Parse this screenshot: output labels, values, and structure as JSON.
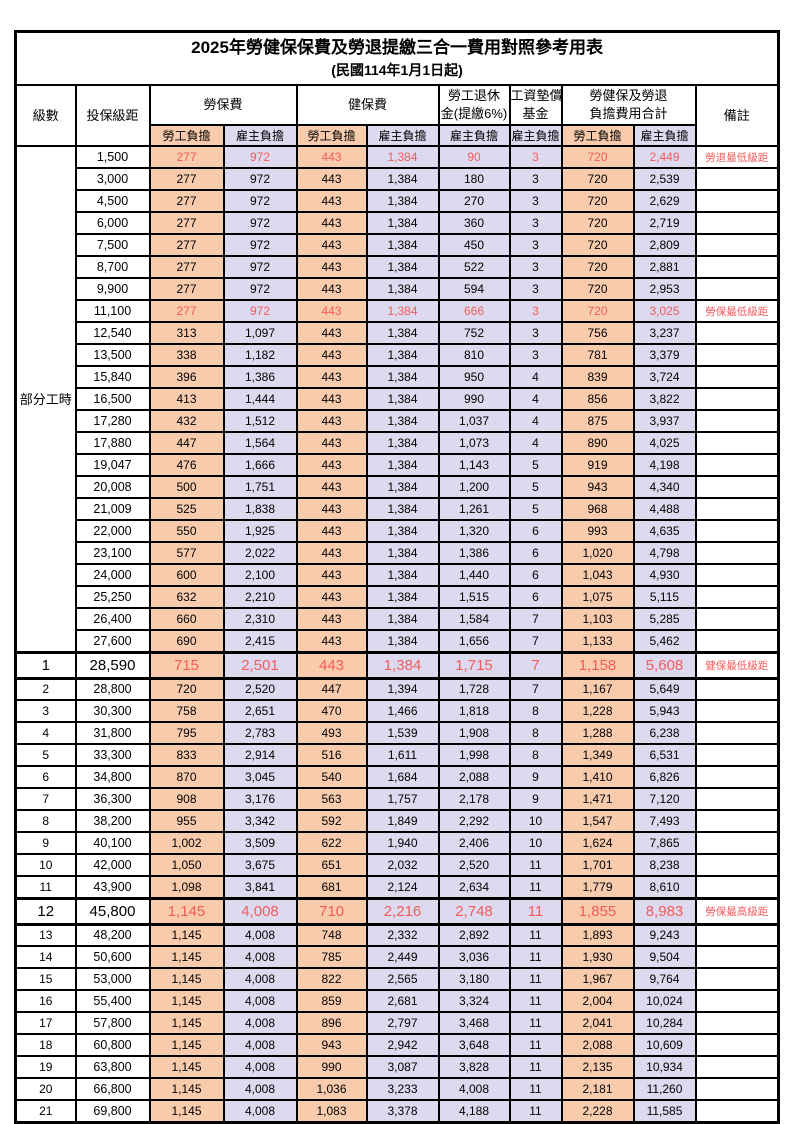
{
  "title": "2025年勞健保保費及勞退提繳三合一費用對照參考用表",
  "subtitle": "(民國114年1月1日起)",
  "header": {
    "level": "級數",
    "salary": "投保級距",
    "labor_group": "勞保費",
    "health_group": "健保費",
    "pension_line1": "勞工退休",
    "pension_line2": "金(提繳6%)",
    "wage_fund_line1": "工資墊償",
    "wage_fund_line2": "基金",
    "total_line1": "勞健保及勞退",
    "total_line2": "負擔費用合計",
    "remark": "備註",
    "employee_label": "勞工負擔",
    "employer_label": "雇主負擔"
  },
  "part_time_label": "部分工時",
  "part_time_rowspan": 23,
  "colors": {
    "employee_bg": "#F8CBAD",
    "employer_bg": "#DDD9EE",
    "highlight_text": "#F25C5C",
    "border": "#000000"
  },
  "rows": [
    {
      "level": "",
      "salary": "1,500",
      "cells": [
        "277",
        "972",
        "443",
        "1,384",
        "90",
        "3",
        "720",
        "2,449"
      ],
      "remark": "勞退最低級距",
      "highlight": true,
      "emphasized": false
    },
    {
      "level": "",
      "salary": "3,000",
      "cells": [
        "277",
        "972",
        "443",
        "1,384",
        "180",
        "3",
        "720",
        "2,539"
      ],
      "remark": "",
      "highlight": false,
      "emphasized": false
    },
    {
      "level": "",
      "salary": "4,500",
      "cells": [
        "277",
        "972",
        "443",
        "1,384",
        "270",
        "3",
        "720",
        "2,629"
      ],
      "remark": "",
      "highlight": false,
      "emphasized": false
    },
    {
      "level": "",
      "salary": "6,000",
      "cells": [
        "277",
        "972",
        "443",
        "1,384",
        "360",
        "3",
        "720",
        "2,719"
      ],
      "remark": "",
      "highlight": false,
      "emphasized": false
    },
    {
      "level": "",
      "salary": "7,500",
      "cells": [
        "277",
        "972",
        "443",
        "1,384",
        "450",
        "3",
        "720",
        "2,809"
      ],
      "remark": "",
      "highlight": false,
      "emphasized": false
    },
    {
      "level": "",
      "salary": "8,700",
      "cells": [
        "277",
        "972",
        "443",
        "1,384",
        "522",
        "3",
        "720",
        "2,881"
      ],
      "remark": "",
      "highlight": false,
      "emphasized": false
    },
    {
      "level": "",
      "salary": "9,900",
      "cells": [
        "277",
        "972",
        "443",
        "1,384",
        "594",
        "3",
        "720",
        "2,953"
      ],
      "remark": "",
      "highlight": false,
      "emphasized": false
    },
    {
      "level": "",
      "salary": "11,100",
      "cells": [
        "277",
        "972",
        "443",
        "1,384",
        "666",
        "3",
        "720",
        "3,025"
      ],
      "remark": "勞保最低級距",
      "highlight": true,
      "emphasized": false
    },
    {
      "level": "",
      "salary": "12,540",
      "cells": [
        "313",
        "1,097",
        "443",
        "1,384",
        "752",
        "3",
        "756",
        "3,237"
      ],
      "remark": "",
      "highlight": false,
      "emphasized": false
    },
    {
      "level": "",
      "salary": "13,500",
      "cells": [
        "338",
        "1,182",
        "443",
        "1,384",
        "810",
        "3",
        "781",
        "3,379"
      ],
      "remark": "",
      "highlight": false,
      "emphasized": false
    },
    {
      "level": "",
      "salary": "15,840",
      "cells": [
        "396",
        "1,386",
        "443",
        "1,384",
        "950",
        "4",
        "839",
        "3,724"
      ],
      "remark": "",
      "highlight": false,
      "emphasized": false
    },
    {
      "level": "",
      "salary": "16,500",
      "cells": [
        "413",
        "1,444",
        "443",
        "1,384",
        "990",
        "4",
        "856",
        "3,822"
      ],
      "remark": "",
      "highlight": false,
      "emphasized": false
    },
    {
      "level": "",
      "salary": "17,280",
      "cells": [
        "432",
        "1,512",
        "443",
        "1,384",
        "1,037",
        "4",
        "875",
        "3,937"
      ],
      "remark": "",
      "highlight": false,
      "emphasized": false
    },
    {
      "level": "",
      "salary": "17,880",
      "cells": [
        "447",
        "1,564",
        "443",
        "1,384",
        "1,073",
        "4",
        "890",
        "4,025"
      ],
      "remark": "",
      "highlight": false,
      "emphasized": false
    },
    {
      "level": "",
      "salary": "19,047",
      "cells": [
        "476",
        "1,666",
        "443",
        "1,384",
        "1,143",
        "5",
        "919",
        "4,198"
      ],
      "remark": "",
      "highlight": false,
      "emphasized": false
    },
    {
      "level": "",
      "salary": "20,008",
      "cells": [
        "500",
        "1,751",
        "443",
        "1,384",
        "1,200",
        "5",
        "943",
        "4,340"
      ],
      "remark": "",
      "highlight": false,
      "emphasized": false
    },
    {
      "level": "",
      "salary": "21,009",
      "cells": [
        "525",
        "1,838",
        "443",
        "1,384",
        "1,261",
        "5",
        "968",
        "4,488"
      ],
      "remark": "",
      "highlight": false,
      "emphasized": false
    },
    {
      "level": "",
      "salary": "22,000",
      "cells": [
        "550",
        "1,925",
        "443",
        "1,384",
        "1,320",
        "6",
        "993",
        "4,635"
      ],
      "remark": "",
      "highlight": false,
      "emphasized": false
    },
    {
      "level": "",
      "salary": "23,100",
      "cells": [
        "577",
        "2,022",
        "443",
        "1,384",
        "1,386",
        "6",
        "1,020",
        "4,798"
      ],
      "remark": "",
      "highlight": false,
      "emphasized": false
    },
    {
      "level": "",
      "salary": "24,000",
      "cells": [
        "600",
        "2,100",
        "443",
        "1,384",
        "1,440",
        "6",
        "1,043",
        "4,930"
      ],
      "remark": "",
      "highlight": false,
      "emphasized": false
    },
    {
      "level": "",
      "salary": "25,250",
      "cells": [
        "632",
        "2,210",
        "443",
        "1,384",
        "1,515",
        "6",
        "1,075",
        "5,115"
      ],
      "remark": "",
      "highlight": false,
      "emphasized": false
    },
    {
      "level": "",
      "salary": "26,400",
      "cells": [
        "660",
        "2,310",
        "443",
        "1,384",
        "1,584",
        "7",
        "1,103",
        "5,285"
      ],
      "remark": "",
      "highlight": false,
      "emphasized": false
    },
    {
      "level": "",
      "salary": "27,600",
      "cells": [
        "690",
        "2,415",
        "443",
        "1,384",
        "1,656",
        "7",
        "1,133",
        "5,462"
      ],
      "remark": "",
      "highlight": false,
      "emphasized": false
    },
    {
      "level": "1",
      "salary": "28,590",
      "cells": [
        "715",
        "2,501",
        "443",
        "1,384",
        "1,715",
        "7",
        "1,158",
        "5,608"
      ],
      "remark": "健保最低級距",
      "highlight": true,
      "emphasized": true
    },
    {
      "level": "2",
      "salary": "28,800",
      "cells": [
        "720",
        "2,520",
        "447",
        "1,394",
        "1,728",
        "7",
        "1,167",
        "5,649"
      ],
      "remark": "",
      "highlight": false,
      "emphasized": false
    },
    {
      "level": "3",
      "salary": "30,300",
      "cells": [
        "758",
        "2,651",
        "470",
        "1,466",
        "1,818",
        "8",
        "1,228",
        "5,943"
      ],
      "remark": "",
      "highlight": false,
      "emphasized": false
    },
    {
      "level": "4",
      "salary": "31,800",
      "cells": [
        "795",
        "2,783",
        "493",
        "1,539",
        "1,908",
        "8",
        "1,288",
        "6,238"
      ],
      "remark": "",
      "highlight": false,
      "emphasized": false
    },
    {
      "level": "5",
      "salary": "33,300",
      "cells": [
        "833",
        "2,914",
        "516",
        "1,611",
        "1,998",
        "8",
        "1,349",
        "6,531"
      ],
      "remark": "",
      "highlight": false,
      "emphasized": false
    },
    {
      "level": "6",
      "salary": "34,800",
      "cells": [
        "870",
        "3,045",
        "540",
        "1,684",
        "2,088",
        "9",
        "1,410",
        "6,826"
      ],
      "remark": "",
      "highlight": false,
      "emphasized": false
    },
    {
      "level": "7",
      "salary": "36,300",
      "cells": [
        "908",
        "3,176",
        "563",
        "1,757",
        "2,178",
        "9",
        "1,471",
        "7,120"
      ],
      "remark": "",
      "highlight": false,
      "emphasized": false
    },
    {
      "level": "8",
      "salary": "38,200",
      "cells": [
        "955",
        "3,342",
        "592",
        "1,849",
        "2,292",
        "10",
        "1,547",
        "7,493"
      ],
      "remark": "",
      "highlight": false,
      "emphasized": false
    },
    {
      "level": "9",
      "salary": "40,100",
      "cells": [
        "1,002",
        "3,509",
        "622",
        "1,940",
        "2,406",
        "10",
        "1,624",
        "7,865"
      ],
      "remark": "",
      "highlight": false,
      "emphasized": false
    },
    {
      "level": "10",
      "salary": "42,000",
      "cells": [
        "1,050",
        "3,675",
        "651",
        "2,032",
        "2,520",
        "11",
        "1,701",
        "8,238"
      ],
      "remark": "",
      "highlight": false,
      "emphasized": false
    },
    {
      "level": "11",
      "salary": "43,900",
      "cells": [
        "1,098",
        "3,841",
        "681",
        "2,124",
        "2,634",
        "11",
        "1,779",
        "8,610"
      ],
      "remark": "",
      "highlight": false,
      "emphasized": false
    },
    {
      "level": "12",
      "salary": "45,800",
      "cells": [
        "1,145",
        "4,008",
        "710",
        "2,216",
        "2,748",
        "11",
        "1,855",
        "8,983"
      ],
      "remark": "勞保最高級距",
      "highlight": true,
      "emphasized": true
    },
    {
      "level": "13",
      "salary": "48,200",
      "cells": [
        "1,145",
        "4,008",
        "748",
        "2,332",
        "2,892",
        "11",
        "1,893",
        "9,243"
      ],
      "remark": "",
      "highlight": false,
      "emphasized": false
    },
    {
      "level": "14",
      "salary": "50,600",
      "cells": [
        "1,145",
        "4,008",
        "785",
        "2,449",
        "3,036",
        "11",
        "1,930",
        "9,504"
      ],
      "remark": "",
      "highlight": false,
      "emphasized": false
    },
    {
      "level": "15",
      "salary": "53,000",
      "cells": [
        "1,145",
        "4,008",
        "822",
        "2,565",
        "3,180",
        "11",
        "1,967",
        "9,764"
      ],
      "remark": "",
      "highlight": false,
      "emphasized": false
    },
    {
      "level": "16",
      "salary": "55,400",
      "cells": [
        "1,145",
        "4,008",
        "859",
        "2,681",
        "3,324",
        "11",
        "2,004",
        "10,024"
      ],
      "remark": "",
      "highlight": false,
      "emphasized": false
    },
    {
      "level": "17",
      "salary": "57,800",
      "cells": [
        "1,145",
        "4,008",
        "896",
        "2,797",
        "3,468",
        "11",
        "2,041",
        "10,284"
      ],
      "remark": "",
      "highlight": false,
      "emphasized": false
    },
    {
      "level": "18",
      "salary": "60,800",
      "cells": [
        "1,145",
        "4,008",
        "943",
        "2,942",
        "3,648",
        "11",
        "2,088",
        "10,609"
      ],
      "remark": "",
      "highlight": false,
      "emphasized": false
    },
    {
      "level": "19",
      "salary": "63,800",
      "cells": [
        "1,145",
        "4,008",
        "990",
        "3,087",
        "3,828",
        "11",
        "2,135",
        "10,934"
      ],
      "remark": "",
      "highlight": false,
      "emphasized": false
    },
    {
      "level": "20",
      "salary": "66,800",
      "cells": [
        "1,145",
        "4,008",
        "1,036",
        "3,233",
        "4,008",
        "11",
        "2,181",
        "11,260"
      ],
      "remark": "",
      "highlight": false,
      "emphasized": false
    },
    {
      "level": "21",
      "salary": "69,800",
      "cells": [
        "1,145",
        "4,008",
        "1,083",
        "3,378",
        "4,188",
        "11",
        "2,228",
        "11,585"
      ],
      "remark": "",
      "highlight": false,
      "emphasized": false
    }
  ]
}
